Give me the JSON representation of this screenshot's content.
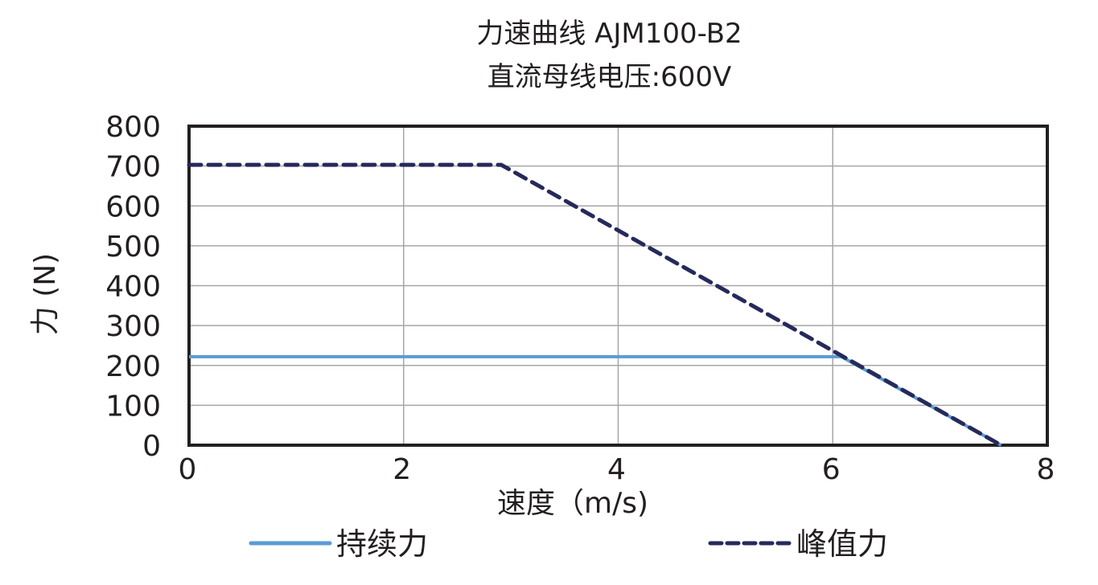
{
  "chart_data": {
    "type": "line",
    "title": "力速曲线 AJM100-B2",
    "subtitle": "直流母线电压:600V",
    "xlabel": "速度（m/s)",
    "ylabel": "力 (N)",
    "xlim": [
      0,
      8
    ],
    "ylim": [
      0,
      800
    ],
    "xticks": [
      "0",
      "2",
      "4",
      "6",
      "8"
    ],
    "yticks": [
      "0",
      "100",
      "200",
      "300",
      "400",
      "500",
      "600",
      "700",
      "800"
    ],
    "grid": true,
    "legend_position": "bottom",
    "series": [
      {
        "name": "持续力",
        "style": "solid",
        "color": "#5b9bd5",
        "x": [
          0,
          6.08,
          7.57
        ],
        "y": [
          222,
          222,
          0
        ]
      },
      {
        "name": "峰值力",
        "style": "dashed",
        "color": "#262a5a",
        "x": [
          0,
          2.91,
          7.57
        ],
        "y": [
          703,
          703,
          0
        ]
      }
    ]
  },
  "legend": {
    "continuous": "持续力",
    "peak": "峰值力"
  }
}
